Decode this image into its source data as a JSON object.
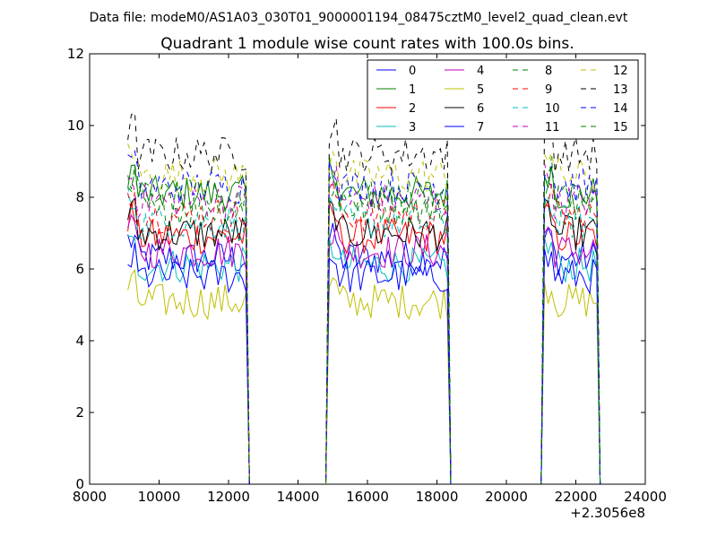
{
  "chart_data": {
    "type": "line",
    "suptitle": "Data file: modeM0/AS1A03_030T01_9000001194_08475cztM0_level2_quad_clean.evt",
    "title": "Quadrant 1 module wise count rates with 100.0s bins.",
    "xlabel": "",
    "ylabel": "",
    "x_offset_label": "+2.3056e8",
    "xlim": [
      8000,
      24000
    ],
    "ylim": [
      0,
      12
    ],
    "xticks": [
      8000,
      10000,
      12000,
      14000,
      16000,
      18000,
      20000,
      22000,
      24000
    ],
    "yticks": [
      0,
      2,
      4,
      6,
      8,
      10,
      12
    ],
    "grid": false,
    "legend_position": "top-right",
    "segments": [
      {
        "start": 9100,
        "end": 12500
      },
      {
        "start": 14900,
        "end": 18300
      },
      {
        "start": 21100,
        "end": 22600
      }
    ],
    "gap_value": 0,
    "series": [
      {
        "name": "0",
        "color": "#0000ff",
        "style": "solid",
        "mean": 6.3
      },
      {
        "name": "1",
        "color": "#008000",
        "style": "solid",
        "mean": 8.1
      },
      {
        "name": "2",
        "color": "#ff0000",
        "style": "solid",
        "mean": 6.9
      },
      {
        "name": "3",
        "color": "#00bfbf",
        "style": "solid",
        "mean": 6.1
      },
      {
        "name": "4",
        "color": "#bf00bf",
        "style": "solid",
        "mean": 6.5
      },
      {
        "name": "5",
        "color": "#bfbf00",
        "style": "solid",
        "mean": 5.1
      },
      {
        "name": "6",
        "color": "#000000",
        "style": "solid",
        "mean": 7.0
      },
      {
        "name": "7",
        "color": "#0000ff",
        "style": "solid",
        "mean": 5.8
      },
      {
        "name": "8",
        "color": "#008000",
        "style": "dashed",
        "mean": 7.7
      },
      {
        "name": "9",
        "color": "#ff0000",
        "style": "dashed",
        "mean": 7.5
      },
      {
        "name": "10",
        "color": "#00bfbf",
        "style": "dashed",
        "mean": 7.3
      },
      {
        "name": "11",
        "color": "#bf00bf",
        "style": "dashed",
        "mean": 7.9
      },
      {
        "name": "12",
        "color": "#bfbf00",
        "style": "dashed",
        "mean": 8.6
      },
      {
        "name": "13",
        "color": "#000000",
        "style": "dashed",
        "mean": 9.2
      },
      {
        "name": "14",
        "color": "#0000ff",
        "style": "dashed",
        "mean": 8.3
      },
      {
        "name": "15",
        "color": "#008000",
        "style": "dashed",
        "mean": 8.0
      }
    ]
  }
}
